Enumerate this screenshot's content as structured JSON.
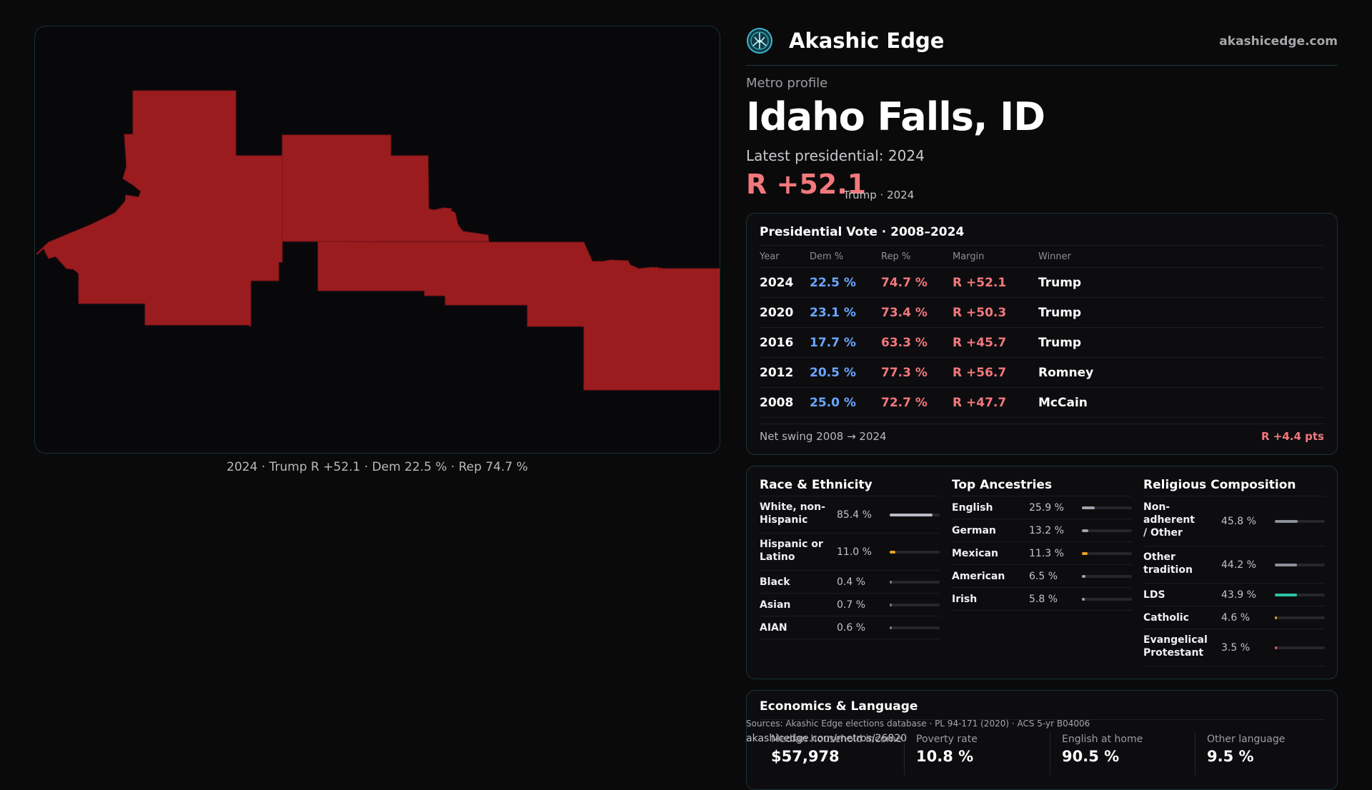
{
  "map": {
    "caption": "2024 · Trump R +52.1 · Dem 22.5 % · Rep 74.7 %",
    "fill_color": "#9b1c1f"
  },
  "brand": {
    "name": "Akashic Edge",
    "url": "akashicedge.com",
    "logo_icon": "akashic-edge-logo-icon"
  },
  "profile": {
    "eyebrow": "Metro profile",
    "name": "Idaho Falls, ID",
    "latest_label": "Latest presidential: 2024",
    "margin": "R +52.1",
    "margin_sub": "Trump · 2024"
  },
  "vote": {
    "title": "Presidential Vote · 2008–2024",
    "headers": {
      "year": "Year",
      "dem": "Dem %",
      "rep": "Rep %",
      "margin": "Margin",
      "winner": "Winner"
    },
    "rows": [
      {
        "year": "2024",
        "dem": "22.5 %",
        "rep": "74.7 %",
        "margin": "R +52.1",
        "winner": "Trump"
      },
      {
        "year": "2020",
        "dem": "23.1 %",
        "rep": "73.4 %",
        "margin": "R +50.3",
        "winner": "Trump"
      },
      {
        "year": "2016",
        "dem": "17.7 %",
        "rep": "63.3 %",
        "margin": "R +45.7",
        "winner": "Trump"
      },
      {
        "year": "2012",
        "dem": "20.5 %",
        "rep": "77.3 %",
        "margin": "R +56.7",
        "winner": "Romney"
      },
      {
        "year": "2008",
        "dem": "25.0 %",
        "rep": "72.7 %",
        "margin": "R +47.7",
        "winner": "McCain"
      }
    ],
    "swing_label": "Net swing 2008 → 2024",
    "swing_value": "R +4.4 pts"
  },
  "race": {
    "title": "Race & Ethnicity",
    "rows": [
      {
        "label": "White, non-Hispanic",
        "value": "85.4 %",
        "share": 0.854,
        "color": "#b7bcc6"
      },
      {
        "label": "Hispanic or Latino",
        "value": "11.0 %",
        "share": 0.11,
        "color": "#e7a321"
      },
      {
        "label": "Black",
        "value": "0.4 %",
        "share": 0.004,
        "color": "#7c7c82"
      },
      {
        "label": "Asian",
        "value": "0.7 %",
        "share": 0.007,
        "color": "#7c7c82"
      },
      {
        "label": "AIAN",
        "value": "0.6 %",
        "share": 0.006,
        "color": "#7c7c82"
      }
    ]
  },
  "ancestry": {
    "title": "Top Ancestries",
    "rows": [
      {
        "label": "English",
        "value": "25.9 %",
        "share": 0.259,
        "color": "#9ea3ad"
      },
      {
        "label": "German",
        "value": "13.2 %",
        "share": 0.132,
        "color": "#9ea3ad"
      },
      {
        "label": "Mexican",
        "value": "11.3 %",
        "share": 0.113,
        "color": "#e7a321"
      },
      {
        "label": "American",
        "value": "6.5 %",
        "share": 0.065,
        "color": "#9ea3ad"
      },
      {
        "label": "Irish",
        "value": "5.8 %",
        "share": 0.058,
        "color": "#9ea3ad"
      }
    ]
  },
  "religion": {
    "title": "Religious Composition",
    "rows": [
      {
        "label": "Non-adherent / Other",
        "value": "45.8 %",
        "share": 0.458,
        "color": "#8d9098"
      },
      {
        "label": "Other tradition",
        "value": "44.2 %",
        "share": 0.442,
        "color": "#8d9098"
      },
      {
        "label": "LDS",
        "value": "43.9 %",
        "share": 0.439,
        "color": "#2bc3a4"
      },
      {
        "label": "Catholic",
        "value": "4.6 %",
        "share": 0.046,
        "color": "#e7a321"
      },
      {
        "label": "Evangelical Protestant",
        "value": "3.5 %",
        "share": 0.035,
        "color": "#e25a5f"
      }
    ]
  },
  "econ": {
    "title": "Economics & Language",
    "cells": [
      {
        "label": "Median household income",
        "value": "$57,978"
      },
      {
        "label": "Poverty rate",
        "value": "10.8 %"
      },
      {
        "label": "English at home",
        "value": "90.5 %"
      },
      {
        "label": "Other language",
        "value": "9.5 %"
      }
    ]
  },
  "footer": {
    "sources": "Sources: Akashic Edge elections database · PL 94-171 (2020) · ACS 5-yr B04006",
    "permalink": "akashicedge.com/metros/26820"
  }
}
